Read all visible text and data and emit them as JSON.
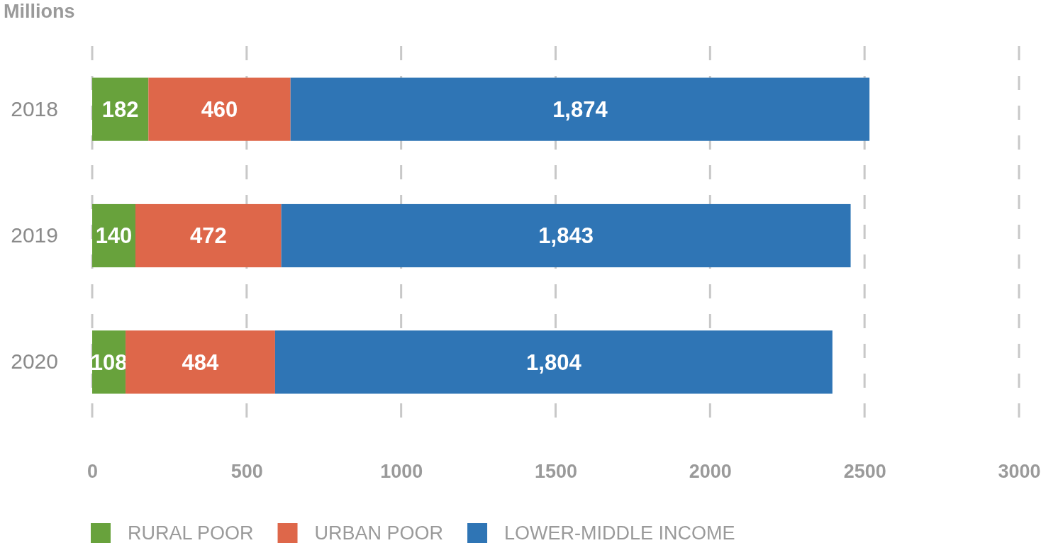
{
  "chart_data": {
    "type": "bar",
    "orientation": "horizontal",
    "stacked": true,
    "categories": [
      "2018",
      "2019",
      "2020"
    ],
    "series": [
      {
        "name": "RURAL POOR",
        "color": "#68a23c",
        "values": [
          182,
          140,
          108
        ],
        "value_labels": [
          "182",
          "140",
          "108"
        ]
      },
      {
        "name": "URBAN POOR",
        "color": "#de674a",
        "values": [
          460,
          472,
          484
        ],
        "value_labels": [
          "460",
          "472",
          "484"
        ]
      },
      {
        "name": "LOWER-MIDDLE INCOME",
        "color": "#2f75b5",
        "values": [
          1874,
          1843,
          1804
        ],
        "value_labels": [
          "1,874",
          "1,843",
          "1,804"
        ]
      }
    ],
    "xlim": [
      0,
      3000
    ],
    "xticks": [
      0,
      500,
      1000,
      1500,
      2000,
      2500,
      3000
    ],
    "grid": "x",
    "legend": "bottom",
    "annotations": [
      "Millions"
    ]
  }
}
